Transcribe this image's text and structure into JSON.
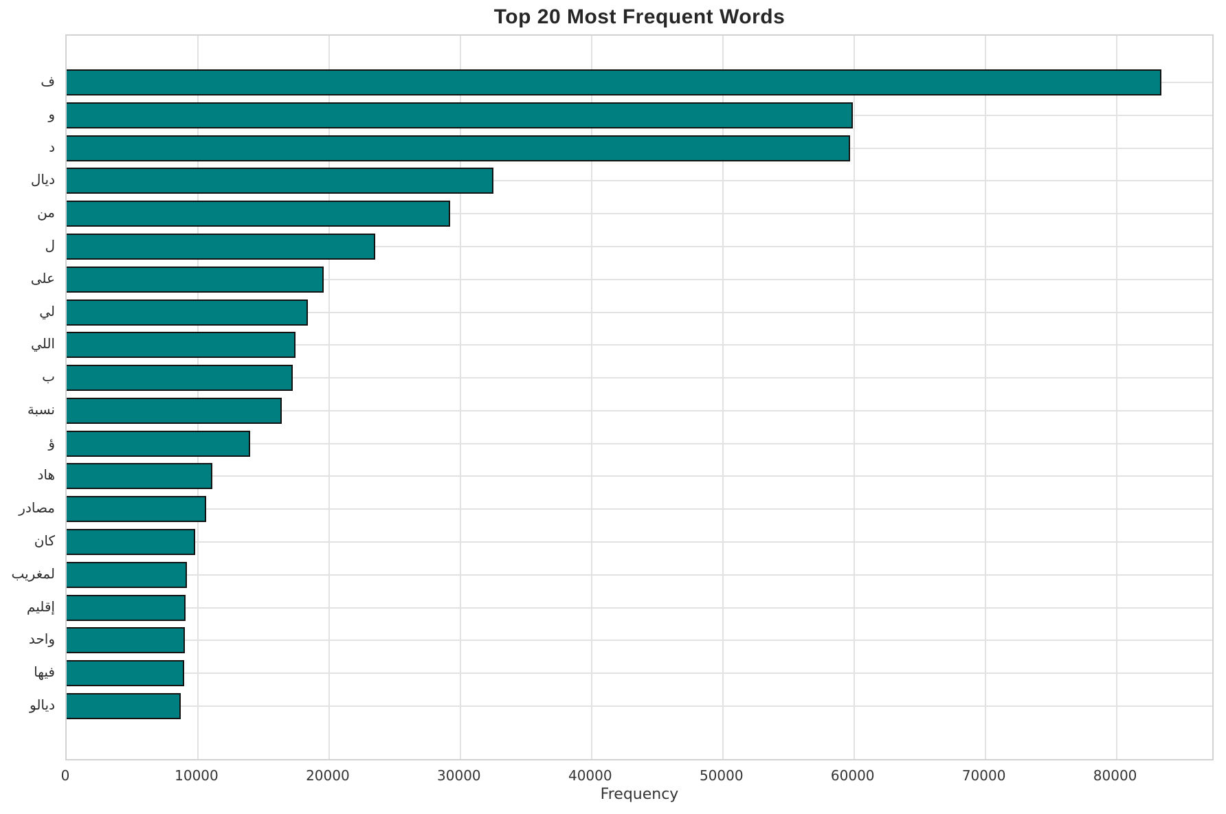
{
  "title": "Top 20 Most Frequent Words",
  "xlabel": "Frequency",
  "chart_data": {
    "type": "bar",
    "orientation": "horizontal",
    "title": "Top 20 Most Frequent Words",
    "xlabel": "Frequency",
    "ylabel": "",
    "categories": [
      "ف",
      "و",
      "د",
      "ديال",
      "من",
      "ل",
      "على",
      "لي",
      "اللي",
      "ب",
      "نسبة",
      "ؤ",
      "هاد",
      "مصادر",
      "كان",
      "لمغريب",
      "إقليم",
      "واحد",
      "فيها",
      "ديالو"
    ],
    "values": [
      83400,
      59900,
      59700,
      32500,
      29200,
      23500,
      19600,
      18400,
      17450,
      17250,
      16400,
      14000,
      11100,
      10650,
      9800,
      9150,
      9050,
      9030,
      8980,
      8670
    ],
    "xlim": [
      0,
      87300
    ],
    "xticks": [
      0,
      10000,
      20000,
      30000,
      40000,
      50000,
      60000,
      70000,
      80000
    ],
    "grid": true,
    "legend": "none",
    "bar_color": "#007f80",
    "bar_edge_color": "#111111",
    "grid_color": "#e2e2e2",
    "spine_color": "#d2d2d2",
    "text_color": "#2b2b2b"
  }
}
